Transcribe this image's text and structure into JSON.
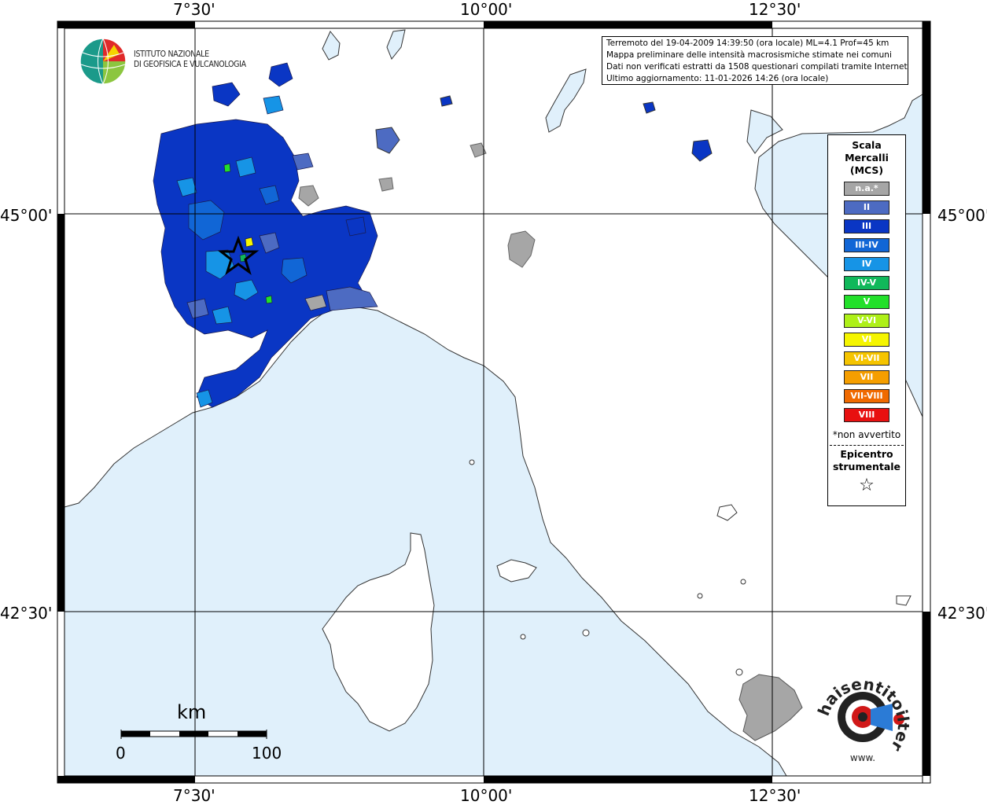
{
  "map": {
    "longitude_ticks": [
      "7°30'",
      "10°00'",
      "12°30'"
    ],
    "latitude_ticks": [
      "45°00'",
      "42°30'"
    ],
    "colors": {
      "sea": "#e0f0fb",
      "land": "#ffffff",
      "grid": "#000000",
      "coast": "#333333"
    }
  },
  "info": {
    "line1": "Terremoto del 19-04-2009 14:39:50 (ora locale) ML=4.1 Prof=45 km",
    "line2": "Mappa preliminare delle intensità macrosismiche stimate nei comuni",
    "line3": "Dati non verificati estratti da 1508 questionari compilati tramite Internet.",
    "line4": "Ultimo aggiornamento: 11-01-2026 14:26 (ora locale)"
  },
  "logo": {
    "line1": "ISTITUTO NAZIONALE",
    "line2": "DI GEOFISICA E VULCANOLOGIA"
  },
  "legend": {
    "title1": "Scala",
    "title2": "Mercalli",
    "title3": "(MCS)",
    "items": [
      {
        "label": "n.a.*",
        "color": "#a6a6a6"
      },
      {
        "label": "II",
        "color": "#4d6bc2"
      },
      {
        "label": "III",
        "color": "#0a36c4"
      },
      {
        "label": "III-IV",
        "color": "#1166d6"
      },
      {
        "label": "IV",
        "color": "#1694e6"
      },
      {
        "label": "IV-V",
        "color": "#10b85a"
      },
      {
        "label": "V",
        "color": "#22e02a"
      },
      {
        "label": "V-VI",
        "color": "#aef018"
      },
      {
        "label": "VI",
        "color": "#f5f500"
      },
      {
        "label": "VI-VII",
        "color": "#f5c400"
      },
      {
        "label": "VII",
        "color": "#f59e00"
      },
      {
        "label": "VII-VIII",
        "color": "#f06a00"
      },
      {
        "label": "VIII",
        "color": "#e81010"
      }
    ],
    "note": "*non avvertito",
    "epicentre1": "Epicentro",
    "epicentre2": "strumentale",
    "epicentre_symbol": "☆"
  },
  "scalebar": {
    "unit": "km",
    "min_label": "0",
    "max_label": "100"
  },
  "hst_logo": {
    "text": "haisentitoilterremoto.it",
    "prefix": "www."
  }
}
